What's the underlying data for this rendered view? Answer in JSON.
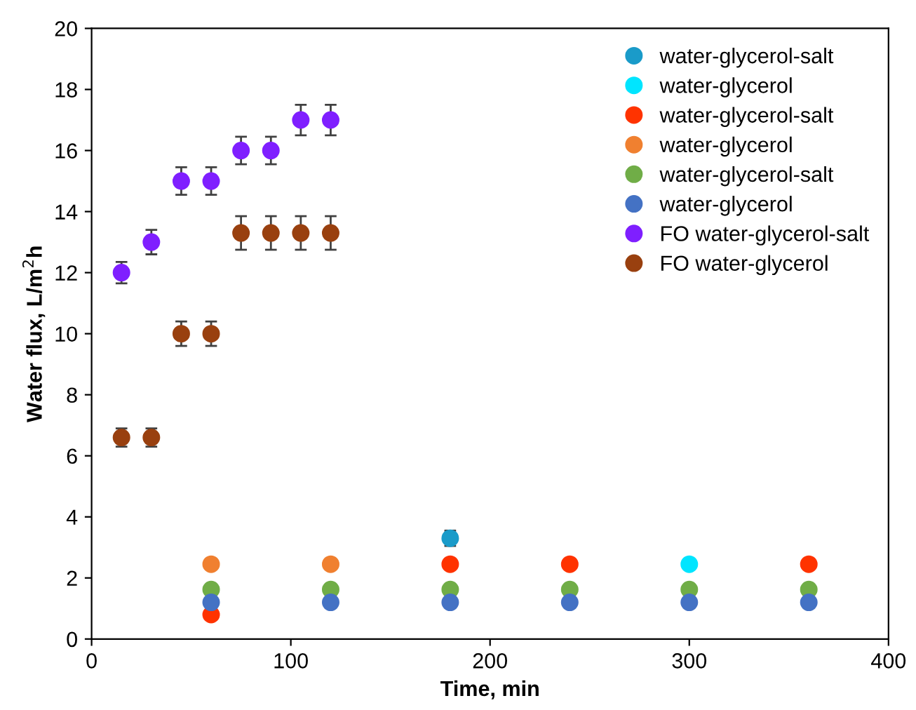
{
  "chart_data": {
    "type": "scatter",
    "xlabel": "Time, min",
    "ylabel": "Water flux, L/m$^{2}$h",
    "xlim": [
      0,
      400
    ],
    "ylim": [
      0,
      20
    ],
    "xticks": [
      0,
      100,
      200,
      300,
      400
    ],
    "yticks": [
      0,
      2,
      4,
      6,
      8,
      10,
      12,
      14,
      16,
      18,
      20
    ],
    "marker": "circle",
    "legend": "top right",
    "grid": false,
    "series": [
      {
        "name": "water-glycerol-salt",
        "color": "#1a9bc9",
        "x": [
          180
        ],
        "values": [
          3.3
        ],
        "errors": [
          0.25
        ]
      },
      {
        "name": "water-glycerol",
        "color": "#00e5ff",
        "x": [
          300
        ],
        "values": [
          2.45
        ]
      },
      {
        "name": "water-glycerol-salt",
        "color": "#ff3300",
        "x": [
          60,
          180,
          240,
          360
        ],
        "values": [
          0.8,
          2.45,
          2.45,
          2.45
        ]
      },
      {
        "name": "water-glycerol",
        "color": "#f08030",
        "x": [
          60,
          120
        ],
        "values": [
          2.45,
          2.45
        ]
      },
      {
        "name": "water-glycerol-salt",
        "color": "#70ad47",
        "x": [
          60,
          120,
          180,
          240,
          300,
          360
        ],
        "values": [
          1.62,
          1.62,
          1.62,
          1.62,
          1.62,
          1.62
        ]
      },
      {
        "name": "water-glycerol",
        "color": "#4472c4",
        "x": [
          60,
          120,
          180,
          240,
          300,
          360
        ],
        "values": [
          1.2,
          1.2,
          1.2,
          1.2,
          1.2,
          1.2
        ]
      },
      {
        "name": "FO water-glycerol-salt",
        "color": "#7f1fff",
        "x": [
          15,
          30,
          45,
          60,
          75,
          90,
          105,
          120
        ],
        "values": [
          12,
          13,
          15,
          15,
          16,
          16,
          17,
          17
        ],
        "errors": [
          0.35,
          0.4,
          0.45,
          0.45,
          0.45,
          0.45,
          0.5,
          0.5
        ]
      },
      {
        "name": "FO water-glycerol",
        "color": "#99400f",
        "x": [
          15,
          30,
          45,
          60,
          75,
          90,
          105,
          120
        ],
        "values": [
          6.6,
          6.6,
          10,
          10,
          13.3,
          13.3,
          13.3,
          13.3
        ],
        "errors": [
          0.3,
          0.3,
          0.4,
          0.4,
          0.55,
          0.55,
          0.55,
          0.55
        ]
      }
    ]
  }
}
